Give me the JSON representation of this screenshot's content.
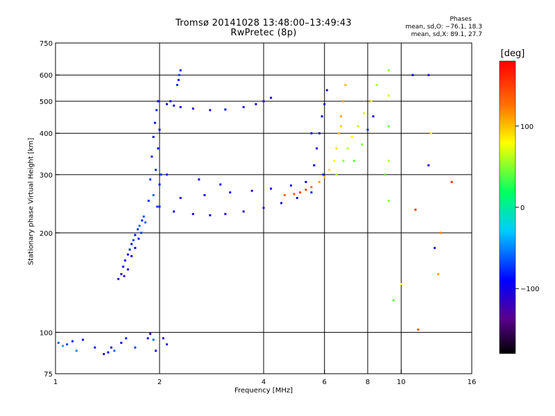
{
  "title": "Tromsø 20141028 13:48:00–13:49:43",
  "subtitle": "RwPretec (8p)",
  "stats": {
    "header": "Phases",
    "o_line": "mean, sd,O: −76.1, 18.3",
    "x_line": "mean, sd,X: 89.1, 27.7"
  },
  "colorbar": {
    "label": "[deg]",
    "range": [
      -180,
      180
    ],
    "ticks": [
      {
        "value": 100,
        "label": "100"
      },
      {
        "value": 0,
        "label": "0"
      },
      {
        "value": -100,
        "label": "−100"
      }
    ]
  },
  "chart_data": {
    "type": "scatter",
    "title": "Tromsø 20141028 13:48:00–13:49:43",
    "subtitle": "RwPretec (8p)",
    "xlabel": "Frequency [MHz]",
    "ylabel": "Stationary phase Virtual Height [km]",
    "x_scale": "log",
    "y_scale": "log",
    "xlim": [
      1,
      16
    ],
    "ylim": [
      75,
      750
    ],
    "x_ticks": [
      {
        "value": 1,
        "label": "1"
      },
      {
        "value": 2,
        "label": "2"
      },
      {
        "value": 4,
        "label": "4"
      },
      {
        "value": 6,
        "label": "6"
      },
      {
        "value": 8,
        "label": "8"
      },
      {
        "value": 10,
        "label": "10"
      },
      {
        "value": 16,
        "label": "16"
      }
    ],
    "y_ticks": [
      {
        "value": 75,
        "label": "75"
      },
      {
        "value": 100,
        "label": "100"
      },
      {
        "value": 200,
        "label": "200"
      },
      {
        "value": 300,
        "label": "300"
      },
      {
        "value": 400,
        "label": "400"
      },
      {
        "value": 500,
        "label": "500"
      },
      {
        "value": 600,
        "label": "600"
      },
      {
        "value": 750,
        "label": "750"
      }
    ],
    "grid_x": [
      2,
      4,
      6,
      8,
      10
    ],
    "grid_y": [
      100,
      200,
      300,
      400,
      500,
      600
    ],
    "color_variable": "phase [deg]",
    "points": [
      [
        1.02,
        93,
        -60
      ],
      [
        1.05,
        91,
        -40
      ],
      [
        1.08,
        92,
        -70
      ],
      [
        1.12,
        94,
        -90
      ],
      [
        1.15,
        88,
        -50
      ],
      [
        1.2,
        95,
        -100
      ],
      [
        1.3,
        90,
        -80
      ],
      [
        1.38,
        86,
        -110
      ],
      [
        1.42,
        87,
        -90
      ],
      [
        1.45,
        90,
        -100
      ],
      [
        1.48,
        88,
        -60
      ],
      [
        1.55,
        93,
        -100
      ],
      [
        1.6,
        96,
        -80
      ],
      [
        1.7,
        90,
        -70
      ],
      [
        1.85,
        96,
        -100
      ],
      [
        1.88,
        99,
        -120
      ],
      [
        1.92,
        95,
        -60
      ],
      [
        1.95,
        88,
        -90
      ],
      [
        2.05,
        96,
        -110
      ],
      [
        2.1,
        92,
        -80
      ],
      [
        1.52,
        145,
        -110
      ],
      [
        1.55,
        150,
        -100
      ],
      [
        1.57,
        158,
        -90
      ],
      [
        1.59,
        165,
        -100
      ],
      [
        1.62,
        172,
        -95
      ],
      [
        1.64,
        178,
        -80
      ],
      [
        1.66,
        185,
        -90
      ],
      [
        1.68,
        190,
        -70
      ],
      [
        1.7,
        197,
        -85
      ],
      [
        1.73,
        205,
        -75
      ],
      [
        1.75,
        210,
        -60
      ],
      [
        1.78,
        218,
        -80
      ],
      [
        1.8,
        224,
        -70
      ],
      [
        1.58,
        148,
        -120
      ],
      [
        1.62,
        155,
        -100
      ],
      [
        1.66,
        170,
        -90
      ],
      [
        1.7,
        180,
        -100
      ],
      [
        1.74,
        192,
        -80
      ],
      [
        1.77,
        200,
        -70
      ],
      [
        1.82,
        215,
        -60
      ],
      [
        1.86,
        250,
        -80
      ],
      [
        1.88,
        290,
        -70
      ],
      [
        1.9,
        340,
        -80
      ],
      [
        1.92,
        390,
        -90
      ],
      [
        1.94,
        430,
        -85
      ],
      [
        1.96,
        470,
        -80
      ],
      [
        1.98,
        500,
        -90
      ],
      [
        1.92,
        260,
        -60
      ],
      [
        1.95,
        310,
        -75
      ],
      [
        1.98,
        360,
        -80
      ],
      [
        2.0,
        410,
        -90
      ],
      [
        2.02,
        300,
        -70
      ],
      [
        2.0,
        280,
        -85
      ],
      [
        1.97,
        240,
        -75
      ],
      [
        2.1,
        490,
        -100
      ],
      [
        2.15,
        500,
        -95
      ],
      [
        2.2,
        485,
        -90
      ],
      [
        2.3,
        480,
        -100
      ],
      [
        2.5,
        475,
        -95
      ],
      [
        2.8,
        470,
        -100
      ],
      [
        3.1,
        472,
        -90
      ],
      [
        3.5,
        480,
        -100
      ],
      [
        3.8,
        490,
        -95
      ],
      [
        4.0,
        500,
        -110
      ],
      [
        4.2,
        512,
        -100
      ],
      [
        2.25,
        560,
        -80
      ],
      [
        2.28,
        600,
        -70
      ],
      [
        2.3,
        620,
        -85
      ],
      [
        2.27,
        580,
        -90
      ],
      [
        2.0,
        240,
        -80
      ],
      [
        2.2,
        232,
        -90
      ],
      [
        2.5,
        228,
        -100
      ],
      [
        2.8,
        226,
        -95
      ],
      [
        3.1,
        228,
        -100
      ],
      [
        3.5,
        232,
        -110
      ],
      [
        4.0,
        238,
        -105
      ],
      [
        4.5,
        246,
        -100
      ],
      [
        5.0,
        255,
        -90
      ],
      [
        5.5,
        265,
        -80
      ],
      [
        2.3,
        255,
        -85
      ],
      [
        2.7,
        260,
        -90
      ],
      [
        3.2,
        265,
        -100
      ],
      [
        3.7,
        268,
        -110
      ],
      [
        4.2,
        272,
        -100
      ],
      [
        4.8,
        278,
        -95
      ],
      [
        5.3,
        285,
        -90
      ],
      [
        2.1,
        300,
        -80
      ],
      [
        2.6,
        290,
        -85
      ],
      [
        3.0,
        280,
        -100
      ],
      [
        4.6,
        260,
        130
      ],
      [
        4.9,
        262,
        140
      ],
      [
        5.1,
        265,
        150
      ],
      [
        5.3,
        270,
        150
      ],
      [
        5.5,
        275,
        130
      ],
      [
        5.8,
        285,
        110
      ],
      [
        6.0,
        295,
        100
      ],
      [
        6.2,
        310,
        90
      ],
      [
        6.4,
        330,
        80
      ],
      [
        6.5,
        360,
        90
      ],
      [
        6.6,
        400,
        100
      ],
      [
        6.7,
        450,
        110
      ],
      [
        6.8,
        500,
        110
      ],
      [
        6.9,
        560,
        100
      ],
      [
        6.7,
        420,
        95
      ],
      [
        5.6,
        320,
        -90
      ],
      [
        5.7,
        360,
        -100
      ],
      [
        5.8,
        400,
        -95
      ],
      [
        5.9,
        450,
        -90
      ],
      [
        6.0,
        490,
        -100
      ],
      [
        6.1,
        540,
        -110
      ],
      [
        5.95,
        300,
        -80
      ],
      [
        5.5,
        400,
        -100
      ],
      [
        6.5,
        300,
        60
      ],
      [
        6.8,
        330,
        50
      ],
      [
        7.0,
        360,
        60
      ],
      [
        7.2,
        390,
        80
      ],
      [
        7.5,
        420,
        60
      ],
      [
        7.8,
        460,
        70
      ],
      [
        8.2,
        500,
        80
      ],
      [
        8.5,
        560,
        60
      ],
      [
        7.3,
        330,
        40
      ],
      [
        7.7,
        370,
        50
      ],
      [
        8.0,
        410,
        -80
      ],
      [
        8.3,
        450,
        -90
      ],
      [
        9.2,
        250,
        50
      ],
      [
        9.2,
        330,
        60
      ],
      [
        9.2,
        420,
        40
      ],
      [
        9.2,
        520,
        70
      ],
      [
        9.2,
        620,
        50
      ],
      [
        9.0,
        300,
        40
      ],
      [
        10.8,
        600,
        -90
      ],
      [
        11.0,
        235,
        150
      ],
      [
        12.0,
        600,
        -100
      ],
      [
        12.2,
        400,
        80
      ],
      [
        12.0,
        320,
        -100
      ],
      [
        12.5,
        180,
        -90
      ],
      [
        13.0,
        200,
        120
      ],
      [
        14.0,
        285,
        160
      ],
      [
        12.8,
        150,
        110
      ],
      [
        11.2,
        102,
        140
      ],
      [
        9.5,
        125,
        40
      ],
      [
        10.0,
        140,
        80
      ]
    ]
  }
}
